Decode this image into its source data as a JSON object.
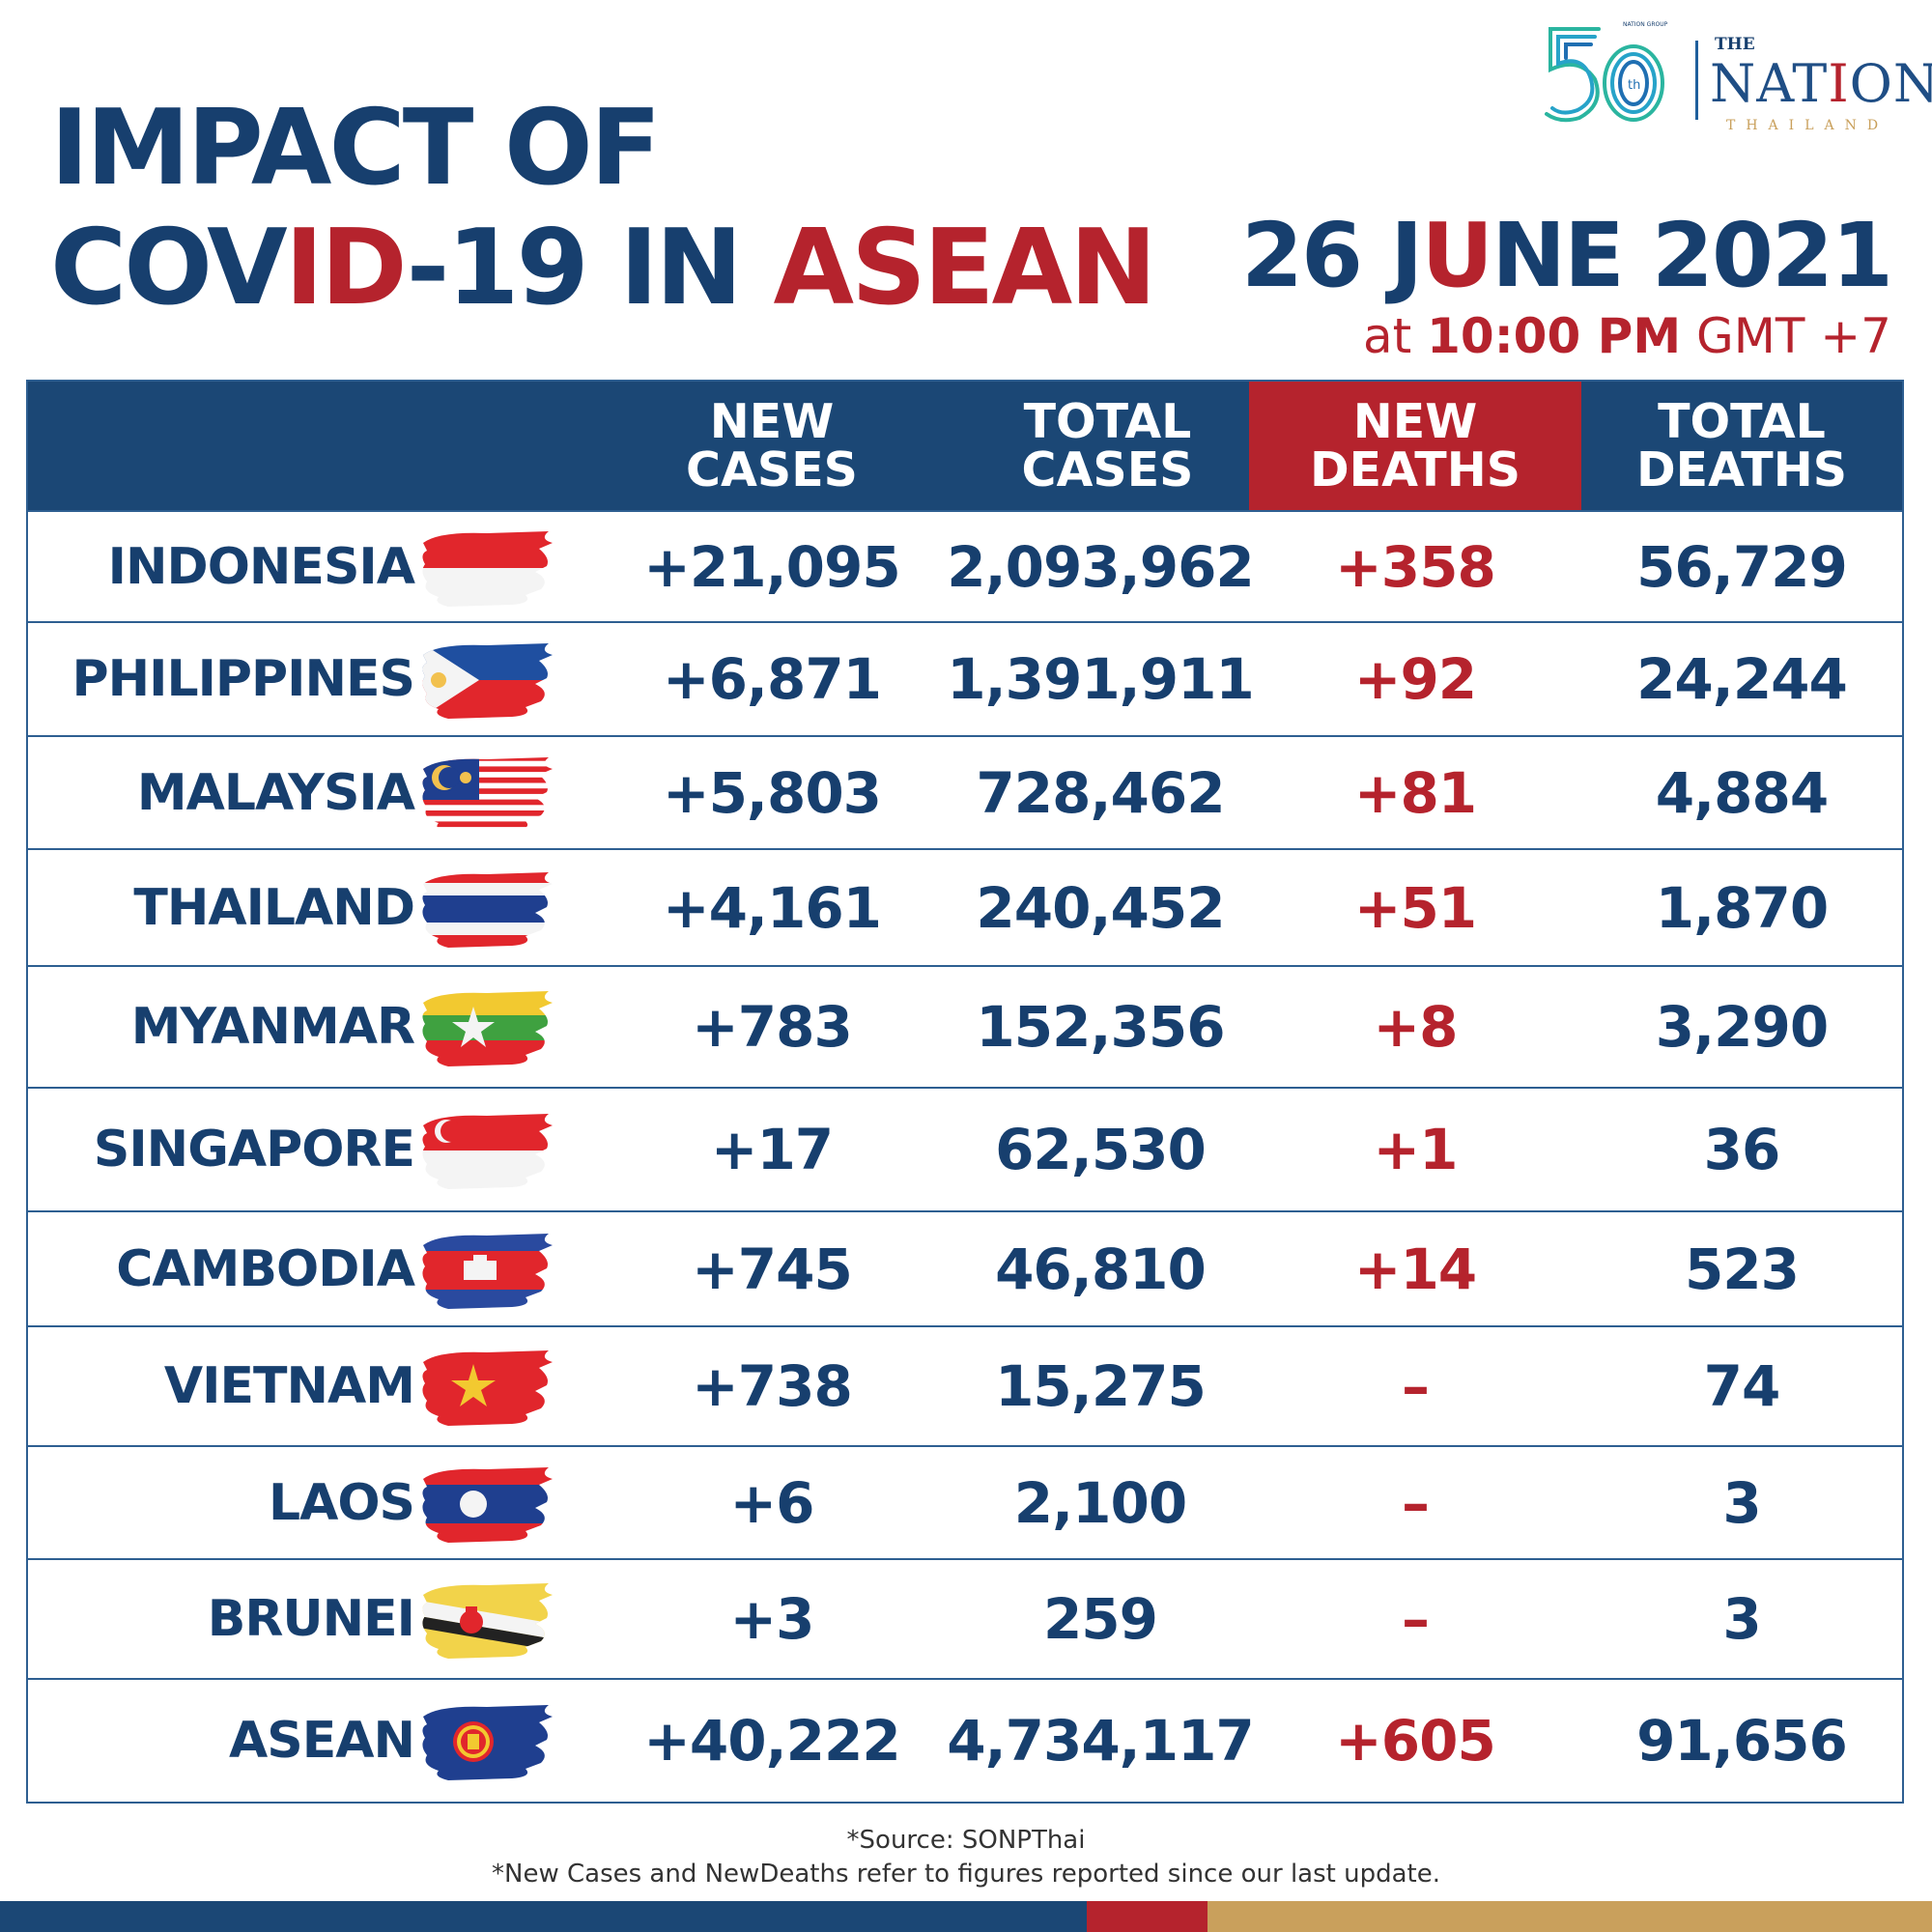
{
  "title": {
    "line1": "IMPACT OF",
    "line2_a": "COV",
    "line2_b": "ID",
    "line2_c": "-19 IN ",
    "line2_d": "ASEAN"
  },
  "date": {
    "a": "26 J",
    "b": "U",
    "c": "NE 2021"
  },
  "time": {
    "pre": "at ",
    "value": "10:00 PM",
    "post": " GMT +7"
  },
  "logo": {
    "the": "THE",
    "nation_a": "NAT",
    "nation_b": "I",
    "nation_c": "ON",
    "thailand": "THAILAND",
    "years": "th",
    "mini": "NATION GROUP"
  },
  "columns": [
    "NEW\nCASES",
    "TOTAL\nCASES",
    "NEW\nDEATHS",
    "TOTAL\nDEATHS"
  ],
  "rows": [
    {
      "country": "INDONESIA",
      "flag": "indonesia-flag",
      "new_cases": "+21,095",
      "total_cases": "2,093,962",
      "new_deaths": "+358",
      "total_deaths": "56,729"
    },
    {
      "country": "PHILIPPINES",
      "flag": "philippines-flag",
      "new_cases": "+6,871",
      "total_cases": "1,391,911",
      "new_deaths": "+92",
      "total_deaths": "24,244"
    },
    {
      "country": "MALAYSIA",
      "flag": "malaysia-flag",
      "new_cases": "+5,803",
      "total_cases": "728,462",
      "new_deaths": "+81",
      "total_deaths": "4,884"
    },
    {
      "country": "THAILAND",
      "flag": "thailand-flag",
      "new_cases": "+4,161",
      "total_cases": "240,452",
      "new_deaths": "+51",
      "total_deaths": "1,870"
    },
    {
      "country": "MYANMAR",
      "flag": "myanmar-flag",
      "new_cases": "+783",
      "total_cases": "152,356",
      "new_deaths": "+8",
      "total_deaths": "3,290"
    },
    {
      "country": "SINGAPORE",
      "flag": "singapore-flag",
      "new_cases": "+17",
      "total_cases": "62,530",
      "new_deaths": "+1",
      "total_deaths": "36"
    },
    {
      "country": "CAMBODIA",
      "flag": "cambodia-flag",
      "new_cases": "+745",
      "total_cases": "46,810",
      "new_deaths": "+14",
      "total_deaths": "523"
    },
    {
      "country": "VIETNAM",
      "flag": "vietnam-flag",
      "new_cases": "+738",
      "total_cases": "15,275",
      "new_deaths": "–",
      "total_deaths": "74"
    },
    {
      "country": "LAOS",
      "flag": "laos-flag",
      "new_cases": "+6",
      "total_cases": "2,100",
      "new_deaths": "–",
      "total_deaths": "3"
    },
    {
      "country": "BRUNEI",
      "flag": "brunei-flag",
      "new_cases": "+3",
      "total_cases": "259",
      "new_deaths": "–",
      "total_deaths": "3"
    },
    {
      "country": "ASEAN",
      "flag": "asean-flag",
      "new_cases": "+40,222",
      "total_cases": "4,734,117",
      "new_deaths": "+605",
      "total_deaths": "91,656"
    }
  ],
  "footer": {
    "source": "*Source: SONPThai",
    "note": "*New Cases and NewDeaths refer to figures reported since our last update."
  },
  "colors": {
    "navy": "#1b4775",
    "text_navy": "#173f6e",
    "red": "#b5232d",
    "gold": "#c9a05c"
  }
}
